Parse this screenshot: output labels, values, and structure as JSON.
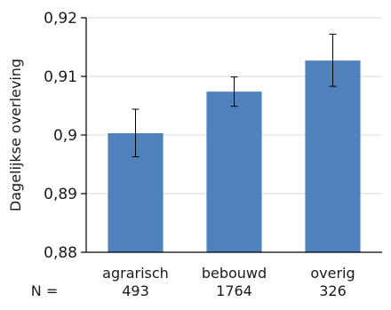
{
  "chart_data": {
    "type": "bar",
    "categories": [
      "agrarisch",
      "bebouwd",
      "overig"
    ],
    "values": [
      0.9003,
      0.9074,
      0.9127
    ],
    "errors": [
      [
        0.8963,
        0.9044
      ],
      [
        0.9049,
        0.9099
      ],
      [
        0.9083,
        0.9172
      ]
    ],
    "counts_label": "N =",
    "counts": [
      "493",
      "1764",
      "326"
    ],
    "ylabel": "Dagelijkse overleving",
    "ylim": [
      0.88,
      0.92
    ],
    "yticks": [
      0.88,
      0.89,
      0.9,
      0.91,
      0.92
    ],
    "ytick_labels": [
      "0,88",
      "0,89",
      "0,9",
      "0,91",
      "0,92"
    ],
    "bar_color": "#4f81bd",
    "grid": true,
    "legend": "none"
  }
}
